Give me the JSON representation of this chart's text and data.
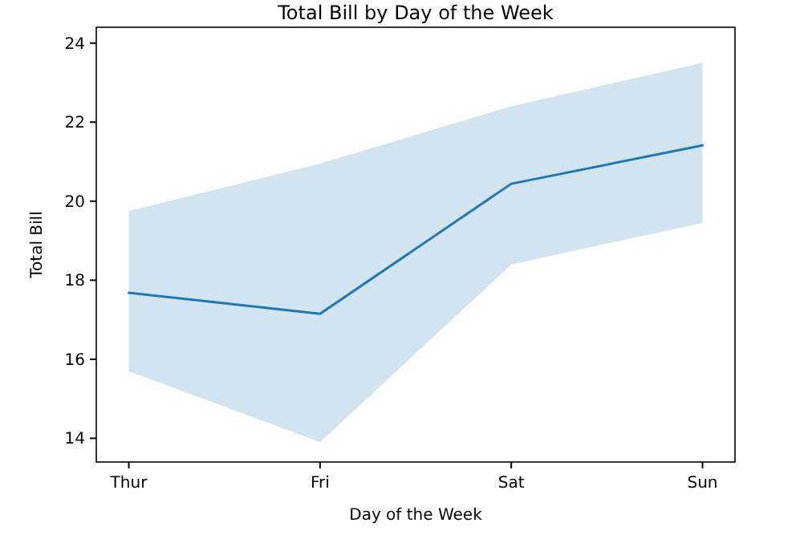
{
  "chart_data": {
    "type": "line",
    "title": "Total Bill by Day of the Week",
    "xlabel": "Day of the Week",
    "ylabel": "Total Bill",
    "categories": [
      "Thur",
      "Fri",
      "Sat",
      "Sun"
    ],
    "series": [
      {
        "color": "#1f77b4",
        "values": [
          17.68,
          17.15,
          20.44,
          21.41
        ],
        "lower": [
          15.7,
          13.9,
          18.4,
          19.45
        ],
        "upper": [
          19.75,
          20.95,
          22.4,
          23.5
        ]
      }
    ],
    "ylim": [
      13.4,
      24.4
    ],
    "yticks": [
      14,
      16,
      18,
      20,
      22,
      24
    ],
    "grid": false
  }
}
